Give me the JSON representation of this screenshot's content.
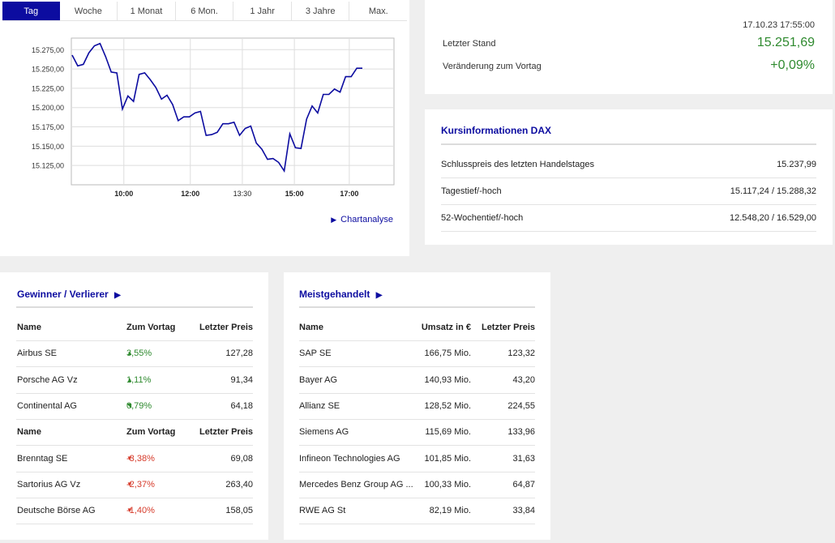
{
  "chart": {
    "tabs": [
      "Tag",
      "Woche",
      "1 Monat",
      "6 Mon.",
      "1 Jahr",
      "3 Jahre",
      "Max."
    ],
    "active_tab": 0,
    "link_label": "Chartanalyse",
    "chart_data": {
      "type": "line",
      "x_ticks": [
        "10:00",
        "12:00",
        "13:30",
        "15:00",
        "17:00"
      ],
      "y_ticks": [
        "15.275,00",
        "15.250,00",
        "15.225,00",
        "15.200,00",
        "15.175,00",
        "15.150,00",
        "15.125,00"
      ],
      "ylim": [
        15100,
        15290
      ],
      "xlim": [
        0,
        48
      ],
      "grid": true,
      "values": [
        15268,
        15254,
        15256,
        15271,
        15280,
        15283,
        15266,
        15246,
        15245,
        15198,
        15215,
        15208,
        15243,
        15245,
        15236,
        15226,
        15211,
        15216,
        15204,
        15183,
        15188,
        15188,
        15193,
        15195,
        15164,
        15165,
        15168,
        15179,
        15179,
        15181,
        15164,
        15173,
        15176,
        15154,
        15146,
        15133,
        15134,
        15129,
        15118,
        15166,
        15148,
        15147,
        15185,
        15202,
        15193,
        15217,
        15217,
        15224,
        15220,
        15240,
        15240,
        15251,
        15251
      ]
    }
  },
  "stand": {
    "timestamp": "17.10.23 17:55:00",
    "last_label": "Letzter Stand",
    "last_value": "15.251,69",
    "change_label": "Veränderung zum Vortag",
    "change_value": "+0,09%",
    "positive_color": "#2f8a2f"
  },
  "kurs": {
    "title": "Kursinformationen DAX",
    "rows": [
      {
        "label": "Schlusspreis des letzten Handelstages",
        "value": "15.237,99"
      },
      {
        "label": "Tagestief/-hoch",
        "value": "15.117,24 / 15.288,32"
      },
      {
        "label": "52-Wochentief/-hoch",
        "value": "12.548,20 / 16.529,00"
      }
    ]
  },
  "gewinner": {
    "title": "Gewinner / Verlierer",
    "header": {
      "name": "Name",
      "change": "Zum Vortag",
      "price": "Letzter Preis"
    },
    "winners": [
      {
        "name": "Airbus SE",
        "change": "3,55%",
        "price": "127,28",
        "arrow": "▲"
      },
      {
        "name": "Porsche AG Vz",
        "change": "1,11%",
        "price": "91,34",
        "arrow": "▲"
      },
      {
        "name": "Continental AG",
        "change": "0,79%",
        "price": "64,18",
        "arrow": "◥"
      }
    ],
    "losers": [
      {
        "name": "Brenntag SE",
        "change": "-3,38%",
        "price": "69,08",
        "arrow": "▼"
      },
      {
        "name": "Sartorius AG Vz",
        "change": "-2,37%",
        "price": "263,40",
        "arrow": "▼"
      },
      {
        "name": "Deutsche Börse AG",
        "change": "-1,40%",
        "price": "158,05",
        "arrow": "▼"
      }
    ]
  },
  "meist": {
    "title": "Meistgehandelt",
    "header": {
      "name": "Name",
      "umsatz": "Umsatz in €",
      "price": "Letzter Preis"
    },
    "rows": [
      {
        "name": "SAP SE",
        "umsatz": "166,75 Mio.",
        "price": "123,32"
      },
      {
        "name": "Bayer AG",
        "umsatz": "140,93 Mio.",
        "price": "43,20"
      },
      {
        "name": "Allianz SE",
        "umsatz": "128,52 Mio.",
        "price": "224,55"
      },
      {
        "name": "Siemens AG",
        "umsatz": "115,69 Mio.",
        "price": "133,96"
      },
      {
        "name": "Infineon Technologies AG",
        "umsatz": "101,85 Mio.",
        "price": "31,63"
      },
      {
        "name": "Mercedes Benz Group AG ...",
        "umsatz": "100,33 Mio.",
        "price": "64,87"
      },
      {
        "name": "RWE AG St",
        "umsatz": "82,19 Mio.",
        "price": "33,84"
      }
    ]
  }
}
